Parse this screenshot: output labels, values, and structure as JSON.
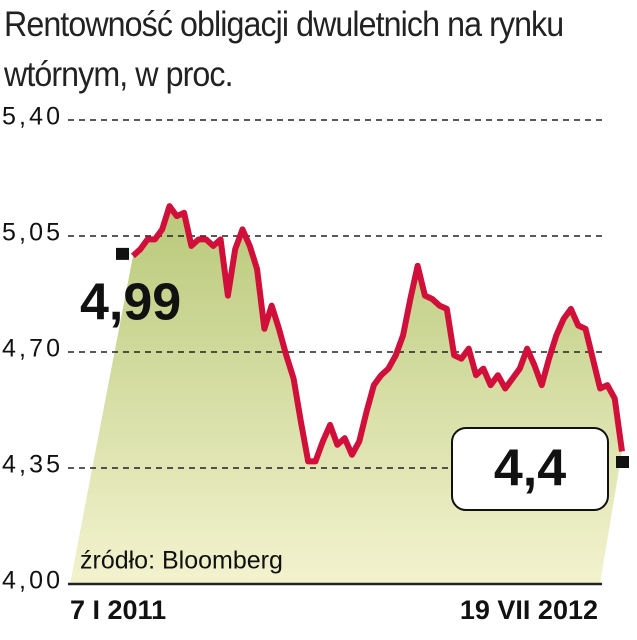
{
  "chart_data": {
    "type": "line",
    "title": "Rentowność obligacji dwuletnich na rynku wtórnym, w proc.",
    "source": "źródło: Bloomberg",
    "categories": [
      "7 I 2011",
      null,
      null,
      null,
      null,
      null,
      null,
      null,
      null,
      null,
      null,
      null,
      null,
      null,
      null,
      null,
      null,
      null,
      null,
      null,
      null,
      null,
      null,
      null,
      null,
      null,
      null,
      null,
      null,
      null,
      null,
      null,
      null,
      null,
      null,
      null,
      null,
      null,
      null,
      null,
      null,
      null,
      null,
      null,
      null,
      null,
      null,
      null,
      null,
      null,
      null,
      null,
      null,
      null,
      null,
      null,
      null,
      null,
      null,
      null,
      null,
      null,
      null,
      null,
      null,
      null,
      null,
      "19 VII 2012"
    ],
    "series": [
      {
        "color": "#d0103a",
        "values": [
          4.99,
          5.01,
          5.04,
          5.04,
          5.07,
          5.14,
          5.11,
          5.12,
          5.02,
          5.04,
          5.04,
          5.02,
          5.04,
          4.87,
          5.01,
          5.07,
          5.02,
          4.95,
          4.77,
          4.84,
          4.77,
          4.69,
          4.62,
          4.49,
          4.37,
          4.37,
          4.43,
          4.48,
          4.42,
          4.44,
          4.39,
          4.43,
          4.52,
          4.6,
          4.63,
          4.65,
          4.69,
          4.75,
          4.86,
          4.96,
          4.87,
          4.86,
          4.84,
          4.83,
          4.69,
          4.68,
          4.71,
          4.63,
          4.65,
          4.6,
          4.63,
          4.59,
          4.62,
          4.65,
          4.71,
          4.66,
          4.6,
          4.68,
          4.75,
          4.8,
          4.83,
          4.78,
          4.77,
          4.68,
          4.59,
          4.6,
          4.56,
          4.4
        ],
        "value_labels": [
          "4,99",
          null,
          null,
          null,
          null,
          null,
          null,
          null,
          null,
          null,
          null,
          null,
          null,
          null,
          null,
          null,
          null,
          null,
          null,
          null,
          null,
          null,
          null,
          null,
          null,
          null,
          null,
          null,
          null,
          null,
          null,
          null,
          null,
          null,
          null,
          null,
          null,
          null,
          null,
          null,
          null,
          null,
          null,
          null,
          null,
          null,
          null,
          null,
          null,
          null,
          null,
          null,
          null,
          null,
          null,
          null,
          null,
          null,
          null,
          null,
          null,
          null,
          null,
          null,
          null,
          null,
          null,
          "4,4"
        ]
      }
    ],
    "ylim": [
      4.0,
      5.4
    ],
    "yticks": [
      {
        "value": 4.0,
        "label": "4,00"
      },
      {
        "value": 4.35,
        "label": "4,35"
      },
      {
        "value": 4.7,
        "label": "4,70"
      },
      {
        "value": 5.05,
        "label": "5,05"
      },
      {
        "value": 5.4,
        "label": "5,40"
      }
    ],
    "grid": true
  }
}
